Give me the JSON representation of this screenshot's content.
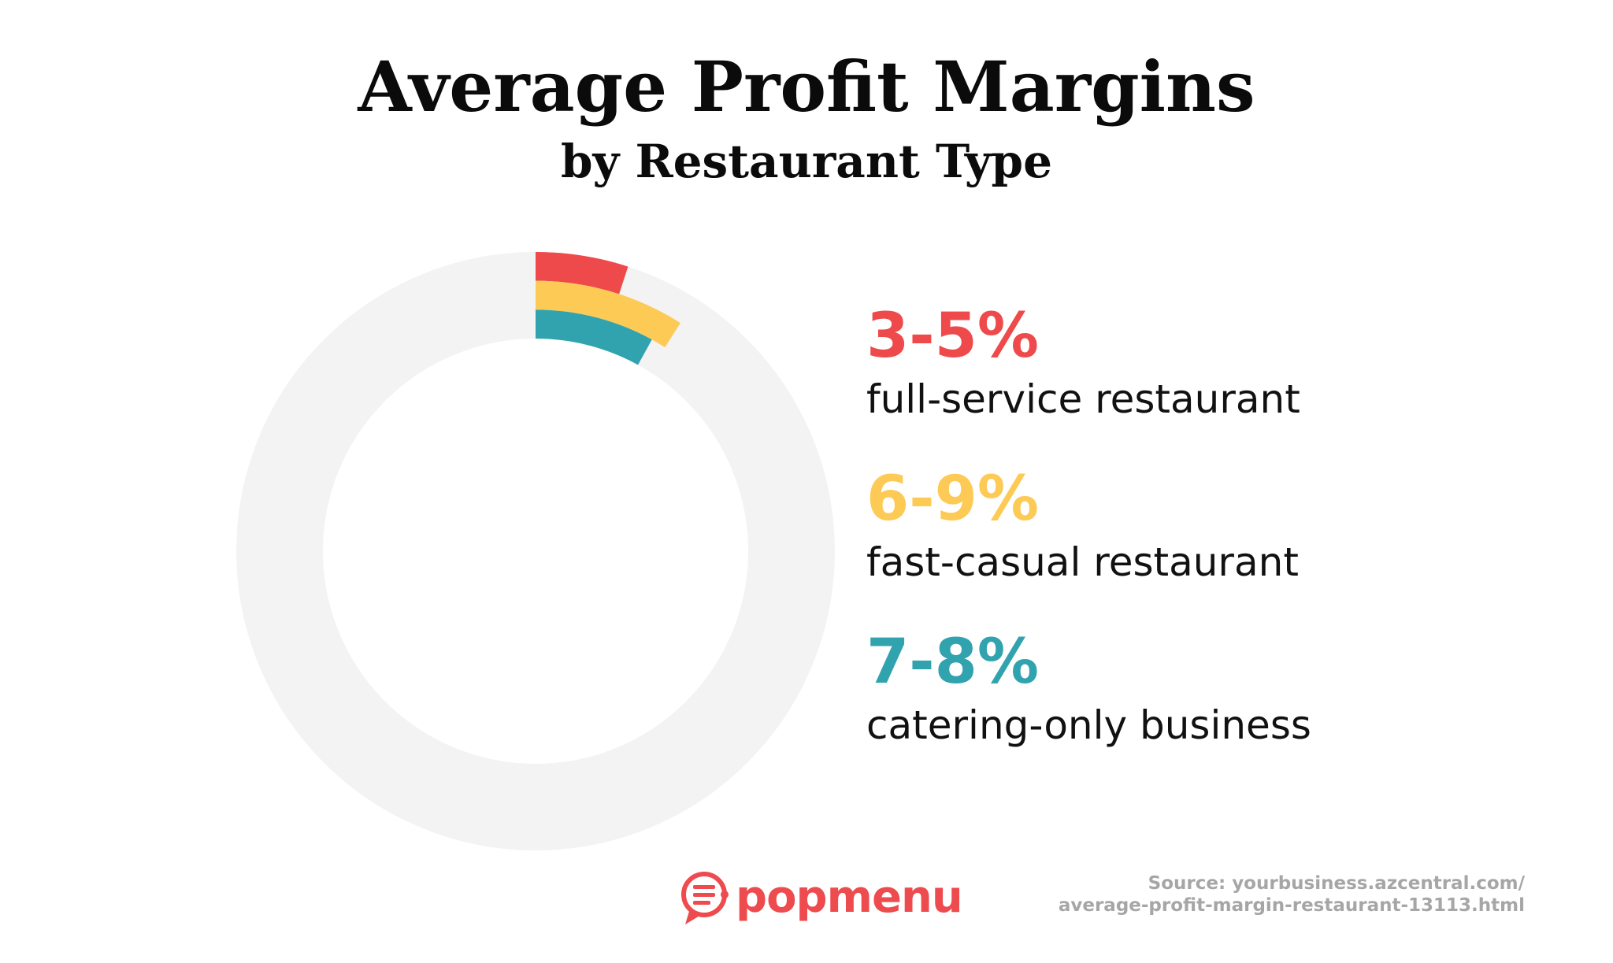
{
  "title": "Average Profit Margins",
  "subtitle": "by Restaurant Type",
  "chart_data": {
    "type": "pie",
    "title": "Average Profit Margins",
    "subtitle": "by Restaurant Type",
    "series": [
      {
        "name": "full-service restaurant",
        "label": "3-5%",
        "min": 3,
        "max": 5,
        "value": 5,
        "color": "#ef4a4b"
      },
      {
        "name": "fast-casual restaurant",
        "label": "6-9%",
        "min": 6,
        "max": 9,
        "value": 9,
        "color": "#fdca55"
      },
      {
        "name": "catering-only business",
        "label": "7-8%",
        "min": 7,
        "max": 8,
        "value": 8,
        "color": "#31a3ae"
      }
    ],
    "total": 100,
    "track_color": "#f3f3f3",
    "legend_position": "right"
  },
  "logo": {
    "text": "popmenu",
    "color": "#ee4b4f"
  },
  "source": {
    "line1": "Source: yourbusiness.azcentral.com/",
    "line2": "average-profit-margin-restaurant-13113.html"
  }
}
